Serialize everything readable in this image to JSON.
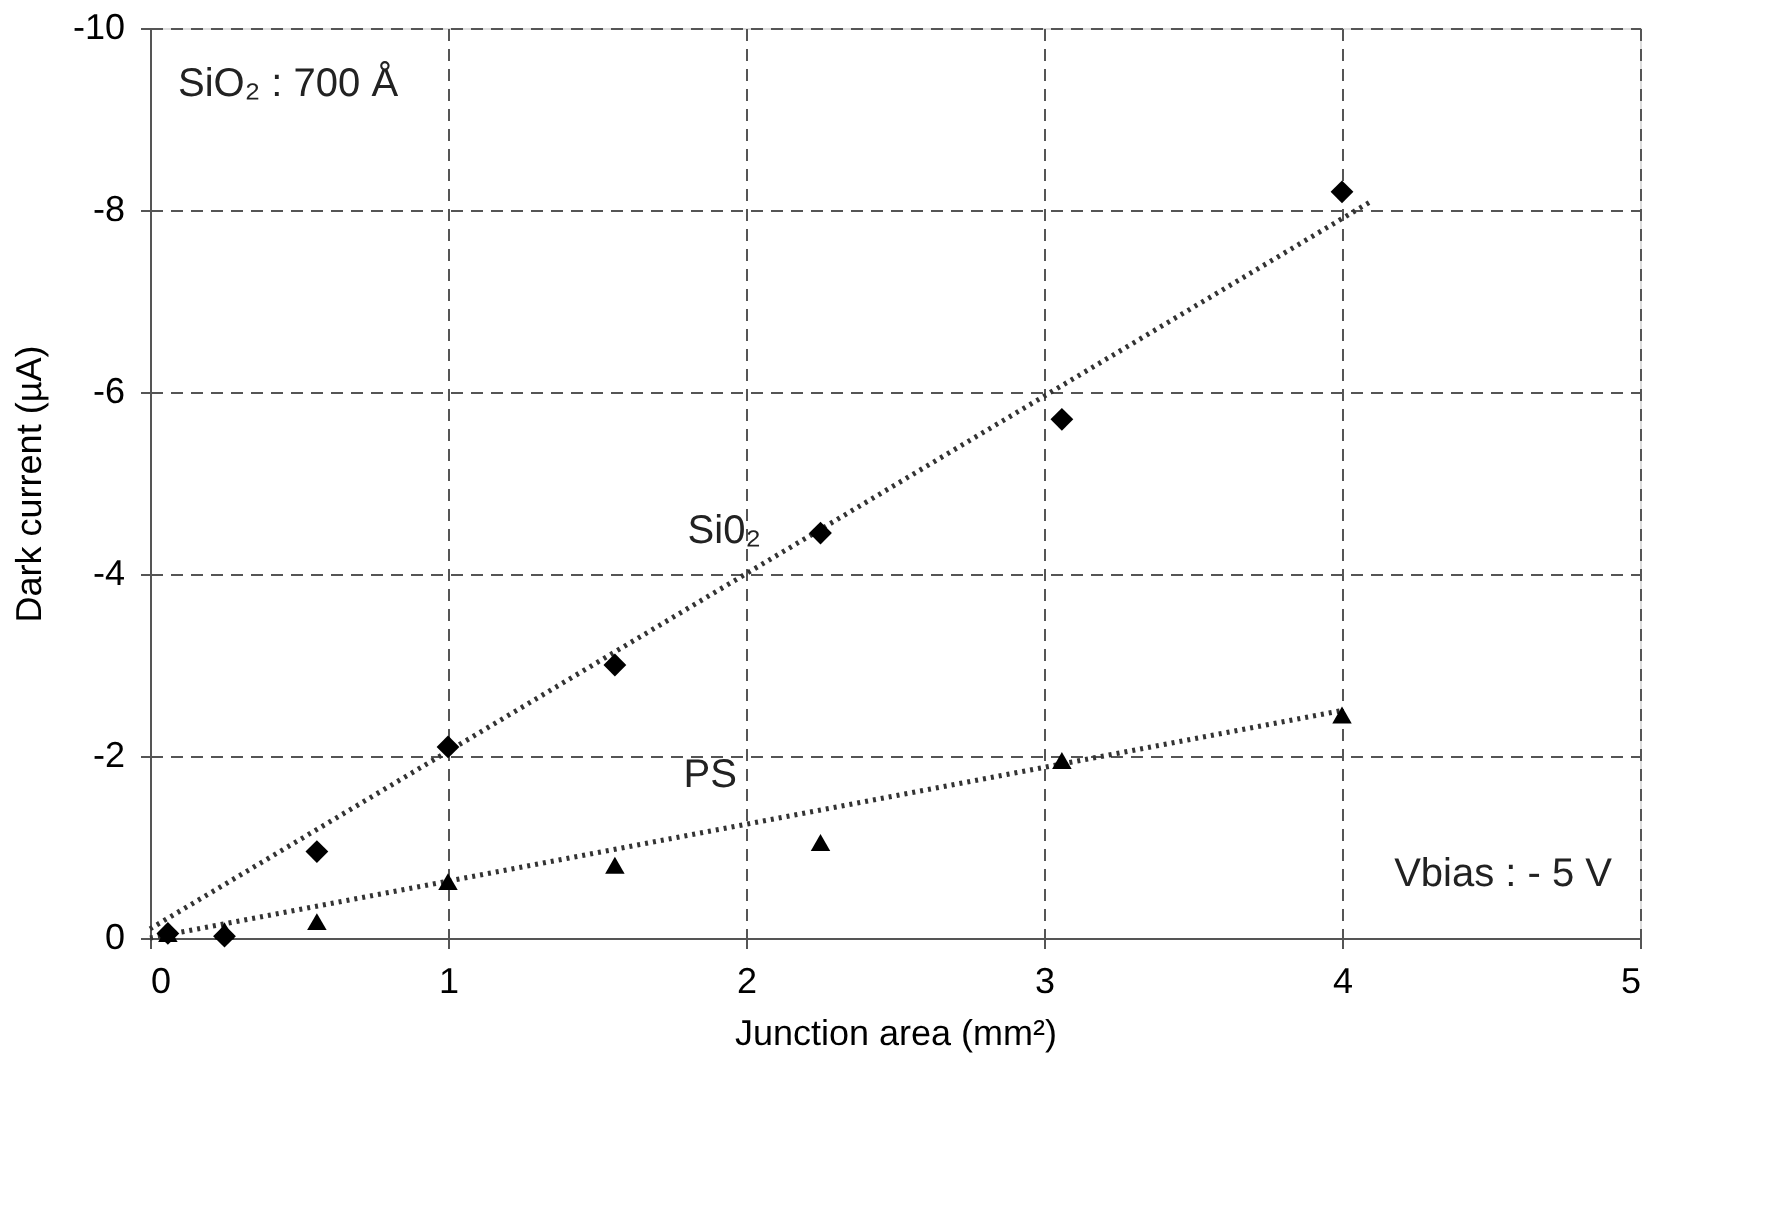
{
  "chart_data": {
    "type": "scatter",
    "xlabel": "Junction area (mm²)",
    "ylabel": "Dark current (µA)",
    "xlim": [
      0,
      5
    ],
    "xticks": [
      0,
      1,
      2,
      3,
      4,
      5
    ],
    "ylim": [
      0,
      -10
    ],
    "yticks": [
      0,
      -2,
      -4,
      -6,
      -8,
      -10
    ],
    "grid": true,
    "series": [
      {
        "name": "Si0₂",
        "marker": "diamond",
        "color": "#000000",
        "x": [
          0.06,
          0.25,
          0.56,
          1.0,
          1.56,
          2.25,
          3.06,
          4.0
        ],
        "values": [
          -0.05,
          -0.02,
          -0.95,
          -2.1,
          -3.0,
          -4.45,
          -5.7,
          -8.2
        ]
      },
      {
        "type": "line",
        "line_style": "dotted",
        "color": "#333333",
        "x": [
          0,
          4.1
        ],
        "values": [
          -0.1,
          -8.1
        ]
      },
      {
        "name": "PS",
        "marker": "triangle",
        "color": "#000000",
        "x": [
          0.06,
          0.25,
          0.56,
          1.0,
          1.56,
          2.25,
          3.06,
          4.0
        ],
        "values": [
          -0.05,
          -0.08,
          -0.18,
          -0.62,
          -0.8,
          -1.05,
          -1.95,
          -2.45
        ]
      },
      {
        "type": "line",
        "line_style": "dotted",
        "color": "#333333",
        "x": [
          0,
          4.0
        ],
        "values": [
          0,
          -2.5
        ]
      }
    ],
    "annotations": [
      "SiO₂ : 700 Å",
      "Vbias : - 5 V"
    ]
  }
}
